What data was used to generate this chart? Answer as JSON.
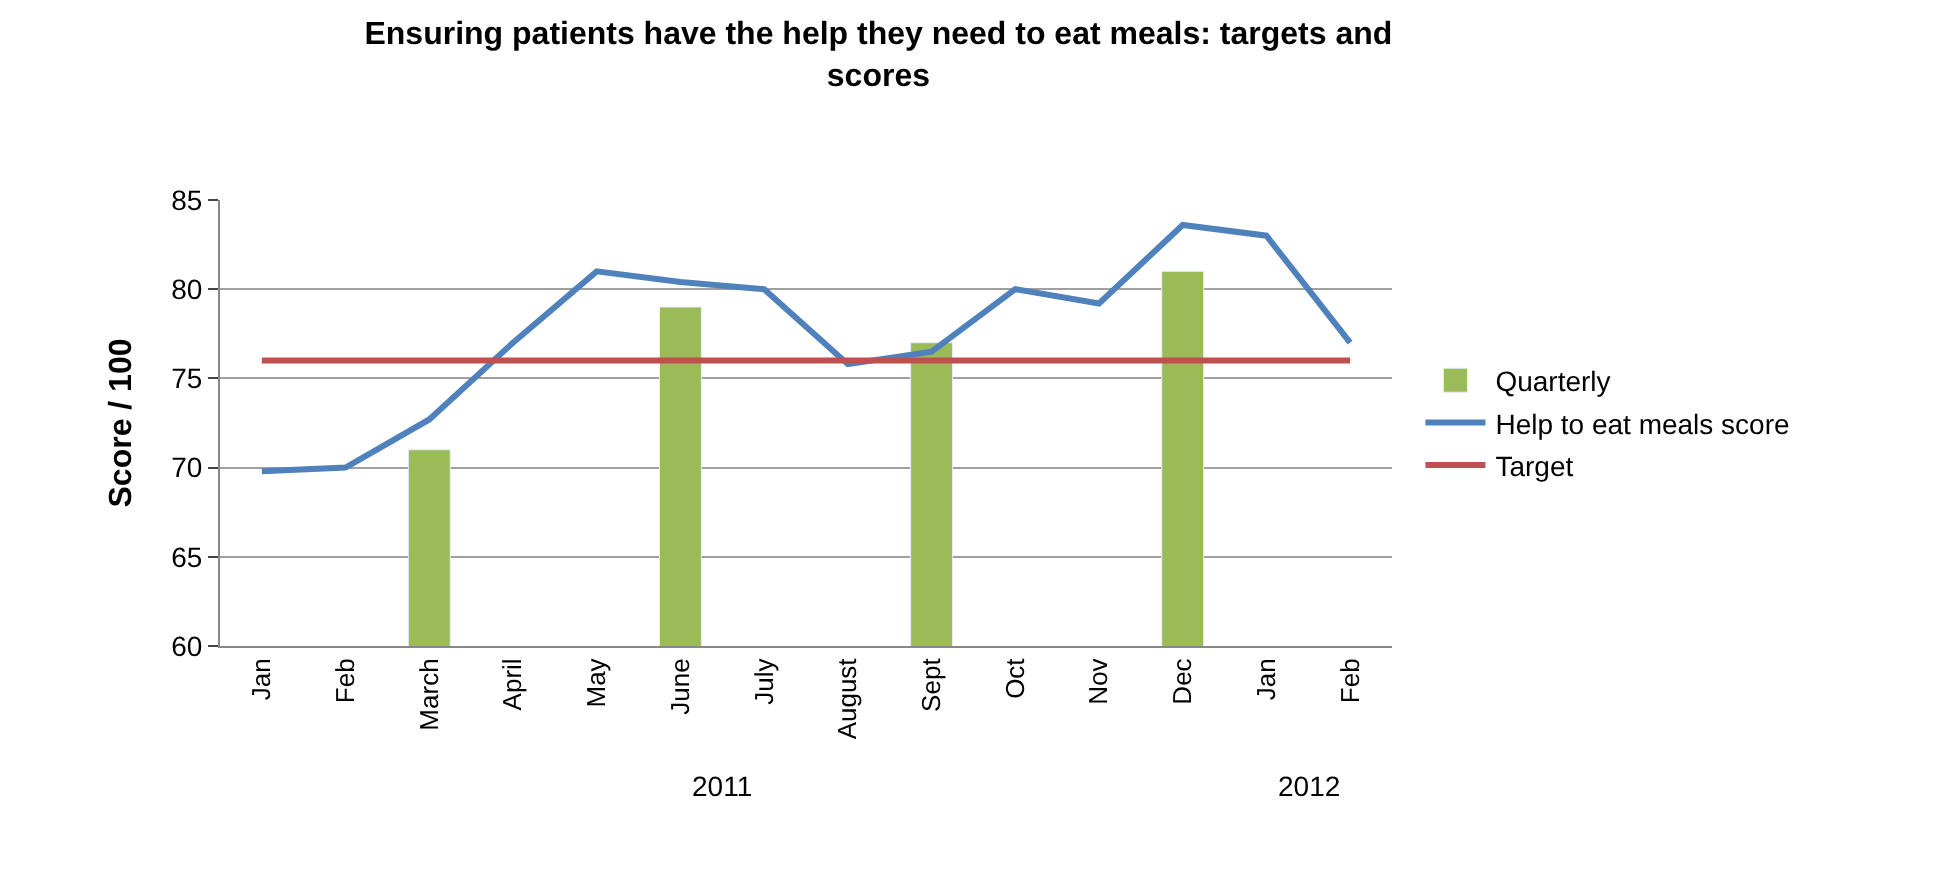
{
  "chart_data": {
    "type": "bar",
    "title": "Ensuring patients have the help they need to eat meals: targets and scores",
    "ylabel": "Score / 100",
    "categories": [
      "Jan",
      "Feb",
      "March",
      "April",
      "May",
      "June",
      "July",
      "August",
      "Sept",
      "Oct",
      "Nov",
      "Dec",
      "Jan",
      "Feb"
    ],
    "series": [
      {
        "name": "Quarterly",
        "color": "#9bbb59",
        "values": [
          null,
          null,
          71,
          null,
          null,
          79,
          null,
          null,
          77,
          null,
          null,
          81,
          null,
          null
        ]
      },
      {
        "name": "Help to eat meals score",
        "type": "line",
        "color": "#4f81bd",
        "values": [
          69.8,
          70,
          72.7,
          77,
          81,
          80.4,
          80,
          75.8,
          76.5,
          80,
          79.2,
          83.6,
          83,
          77
        ]
      },
      {
        "name": "Target",
        "type": "line",
        "color": "#c0504d",
        "values": [
          76,
          76,
          76,
          76,
          76,
          76,
          76,
          76,
          76,
          76,
          76,
          76,
          76,
          76
        ]
      }
    ],
    "annotations": [
      "2011",
      "2012"
    ],
    "ylim": [
      60,
      85
    ],
    "yticks": [
      60,
      65,
      70,
      75,
      80,
      85
    ],
    "grid": "y",
    "legend": "right",
    "marker": "none",
    "line_style": "solid"
  }
}
